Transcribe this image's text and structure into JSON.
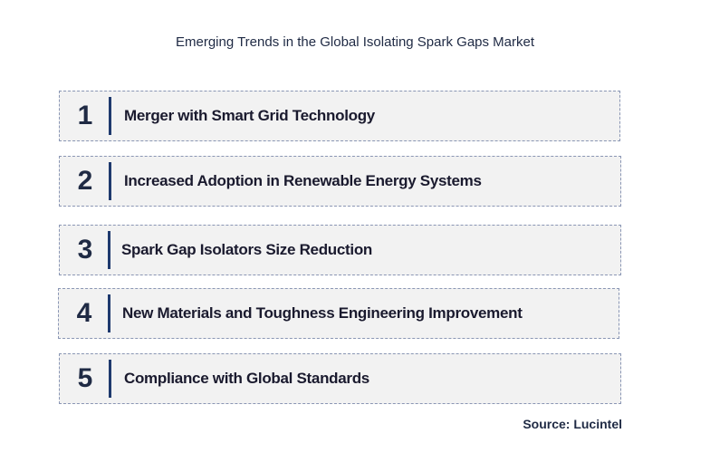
{
  "title": "Emerging Trends in the Global Isolating Spark Gaps Market",
  "trends": [
    {
      "number": "1",
      "label": "Merger with Smart Grid Technology"
    },
    {
      "number": "2",
      "label": "Increased Adoption in Renewable Energy Systems"
    },
    {
      "number": "3",
      "label": "Spark Gap Isolators Size Reduction"
    },
    {
      "number": "4",
      "label": "New Materials and Toughness Engineering Improvement"
    },
    {
      "number": "5",
      "label": "Compliance with Global Standards"
    }
  ],
  "source": "Source: Lucintel"
}
